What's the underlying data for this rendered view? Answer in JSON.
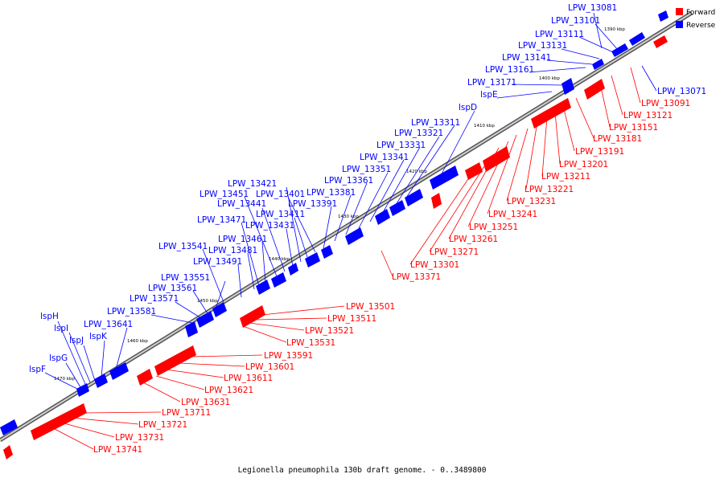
{
  "caption": "Legionella pneumophila 130b draft genome. - 0..3489800",
  "legend": [
    {
      "label": "Forward",
      "color": "#ff0000"
    },
    {
      "label": "Reverse",
      "color": "#0000ff"
    }
  ],
  "colors": {
    "forward": "#ff0000",
    "reverse": "#0000ff",
    "backbone": "#9a9a9a"
  },
  "ticks": [
    "1390 kbp",
    "1400 kbp",
    "1410 kbp",
    "1420 kbp",
    "1430 kbp",
    "1440 kbp",
    "1450 kbp",
    "1460 kbp",
    "1470 kbp"
  ],
  "reverse_labels": [
    "LPW_13081",
    "LPW_13101",
    "LPW_13111",
    "LPW_13131",
    "LPW_13141",
    "LPW_13161",
    "LPW_13171",
    "lspE",
    "lspD",
    "LPW_13311",
    "LPW_13321",
    "LPW_13331",
    "LPW_13341",
    "LPW_13351",
    "LPW_13361",
    "LPW_13381",
    "LPW_13391",
    "LPW_13401",
    "LPW_13411",
    "LPW_13421",
    "LPW_13431",
    "LPW_13441",
    "LPW_13451",
    "LPW_13461",
    "LPW_13471",
    "LPW_13481",
    "LPW_13491",
    "LPW_13541",
    "LPW_13551",
    "LPW_13561",
    "LPW_13571",
    "LPW_13581",
    "LPW_13641",
    "lspK",
    "lspJ",
    "lspI",
    "lspH",
    "lspG",
    "lspF",
    "LPW_13071"
  ],
  "forward_labels": [
    "LPW_13091",
    "LPW_13121",
    "LPW_13151",
    "LPW_13181",
    "LPW_13191",
    "LPW_13201",
    "LPW_13211",
    "LPW_13221",
    "LPW_13231",
    "LPW_13241",
    "LPW_13251",
    "LPW_13261",
    "LPW_13271",
    "LPW_13301",
    "LPW_13371",
    "LPW_13501",
    "LPW_13511",
    "LPW_13521",
    "LPW_13531",
    "LPW_13591",
    "LPW_13601",
    "LPW_13611",
    "LPW_13621",
    "LPW_13631",
    "LPW_13711",
    "LPW_13721",
    "LPW_13731",
    "LPW_13741"
  ]
}
